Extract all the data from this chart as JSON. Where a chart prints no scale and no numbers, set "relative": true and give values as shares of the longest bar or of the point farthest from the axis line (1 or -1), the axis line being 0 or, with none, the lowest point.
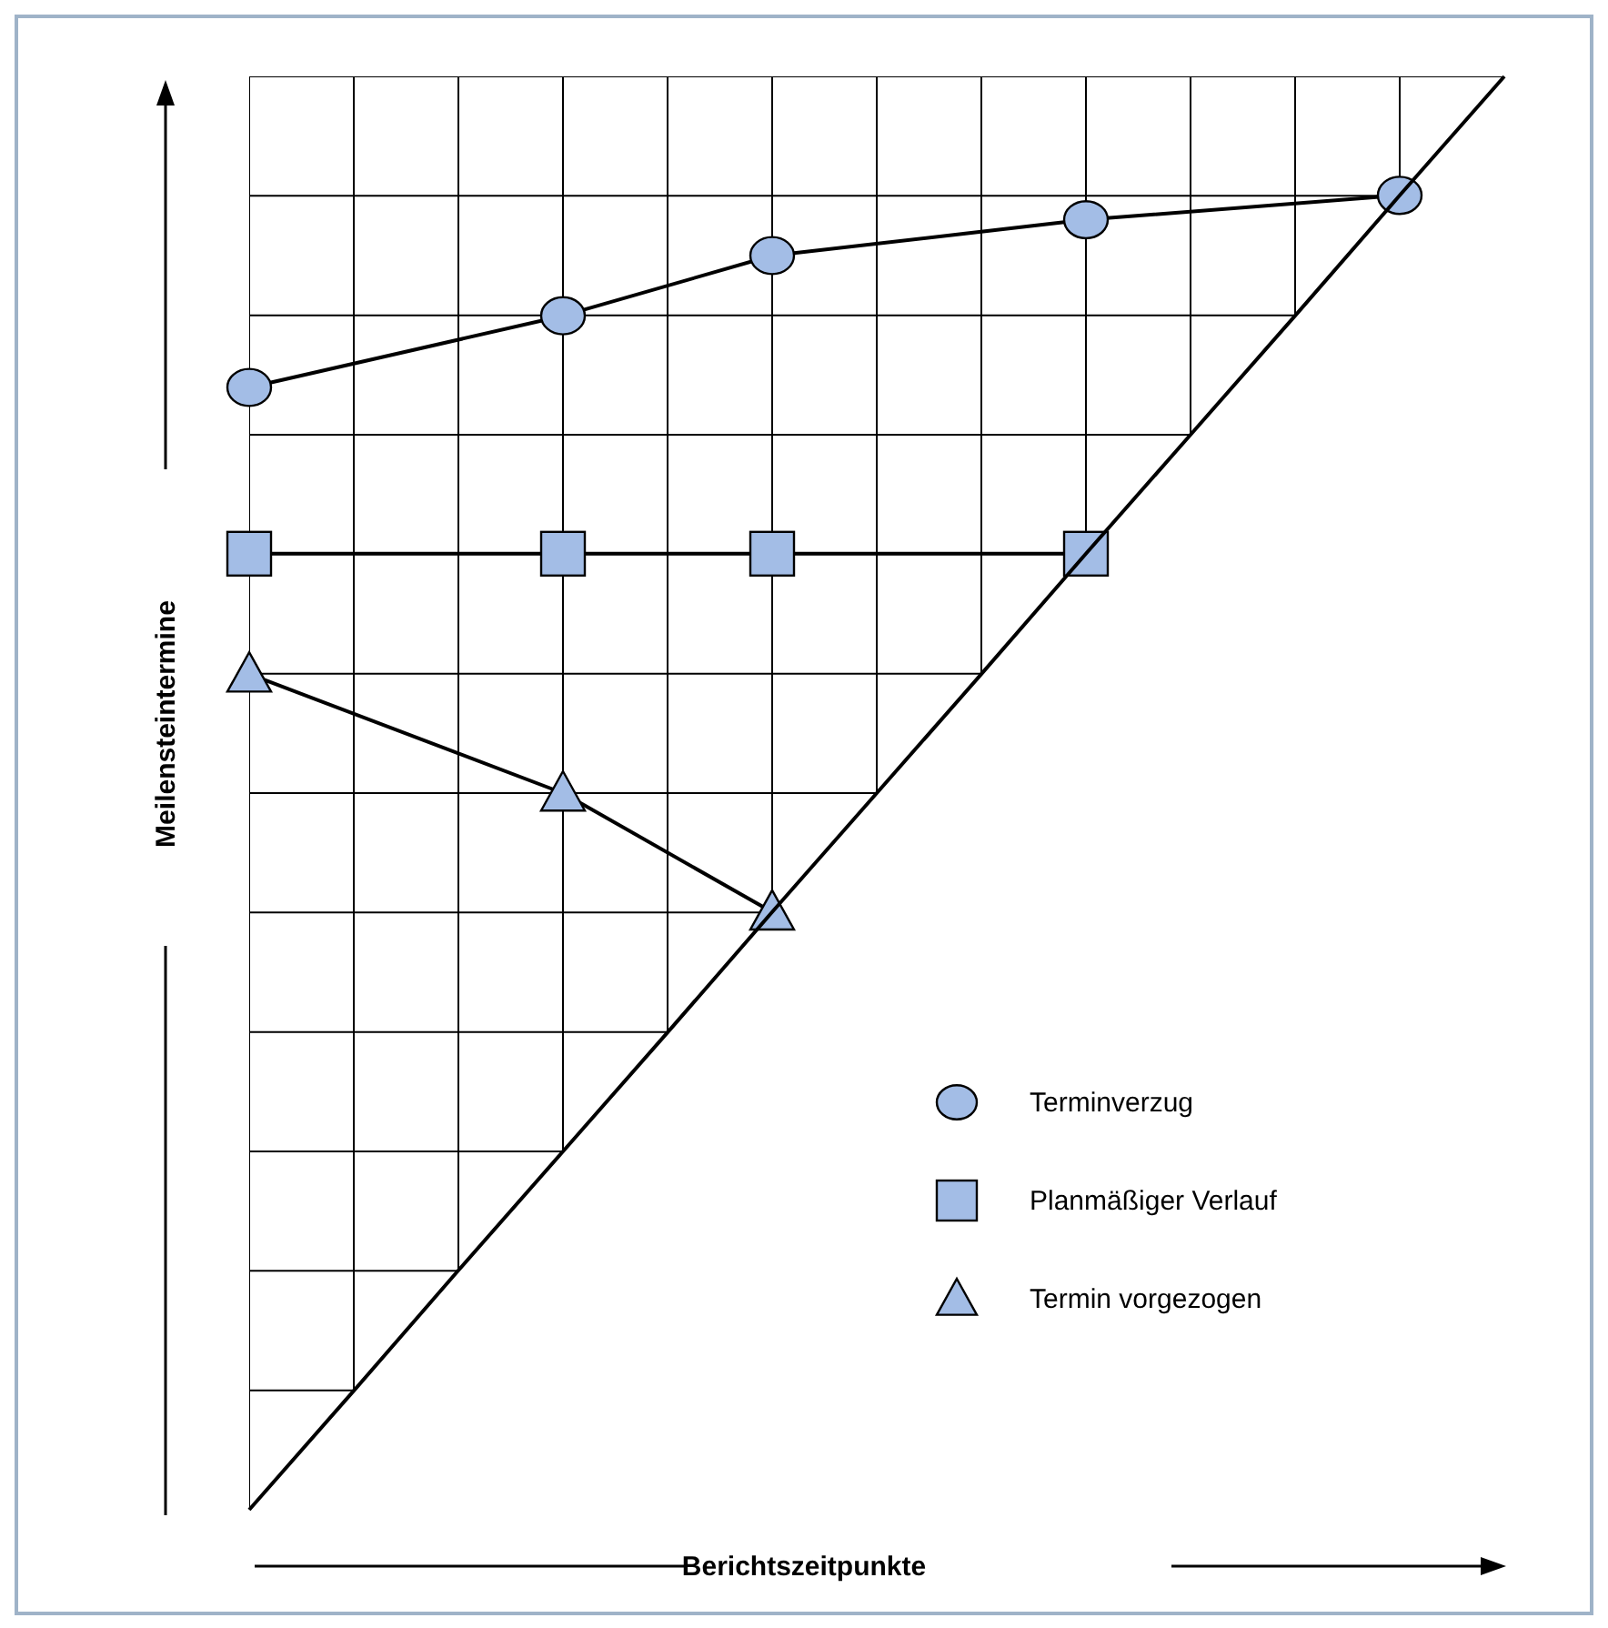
{
  "chart_data": {
    "type": "line",
    "relative": true,
    "xlabel": "Berichtszeitpunkte",
    "ylabel": "Meilensteintermine",
    "categories": [
      null,
      null,
      null,
      null,
      null,
      null,
      null,
      null,
      null,
      null,
      null,
      null,
      null
    ],
    "series": [
      {
        "name": "Terminverzug",
        "color": "#000000",
        "marker": "circle",
        "values": [
          0.783,
          null,
          null,
          0.833,
          null,
          0.875,
          null,
          null,
          0.9,
          null,
          null,
          0.917,
          null
        ]
      },
      {
        "name": "Planmäßiger Verlauf",
        "color": "#000000",
        "marker": "square",
        "values": [
          0.667,
          null,
          null,
          0.667,
          null,
          0.667,
          null,
          null,
          0.667,
          null,
          null,
          null,
          null
        ]
      },
      {
        "name": "Termin vorgezogen",
        "color": "#000000",
        "marker": "triangle",
        "values": [
          0.583,
          null,
          null,
          0.5,
          null,
          0.417,
          null,
          null,
          null,
          null,
          null,
          null,
          null
        ]
      },
      {
        "color": "#000000",
        "marker": "none",
        "values": [
          0,
          0.083,
          0.167,
          0.25,
          0.333,
          0.417,
          0.5,
          0.583,
          0.667,
          0.75,
          0.833,
          0.917,
          1
        ]
      }
    ],
    "grid": true,
    "legend": "bottom right"
  }
}
